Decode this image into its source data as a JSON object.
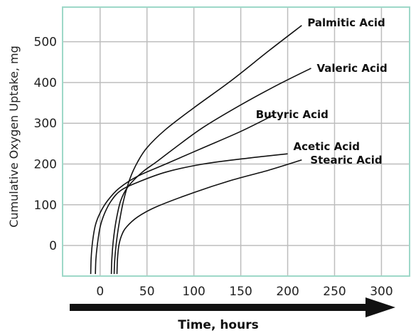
{
  "chart_data": {
    "type": "line",
    "title": "",
    "xlabel": "Time, hours",
    "ylabel": "Cumulative Oxygen Uptake, mg",
    "xlim": [
      -40,
      330
    ],
    "ylim": [
      -75,
      585
    ],
    "x_ticks": [
      0,
      50,
      100,
      150,
      200,
      250,
      300
    ],
    "y_ticks": [
      0,
      100,
      200,
      300,
      400,
      500
    ],
    "grid": true,
    "legend": "none",
    "axis_color": "#9ed8c8",
    "grid_color": "#bdbdbd",
    "line_color": "#111111",
    "arrow_color": "#111111",
    "series": [
      {
        "name": "Palmitic Acid",
        "x": [
          15,
          15.5,
          17,
          20,
          25,
          32,
          40,
          50,
          70,
          100,
          140,
          180,
          215
        ],
        "y": [
          -70,
          -40,
          0,
          50,
          110,
          165,
          205,
          240,
          285,
          338,
          405,
          478,
          540
        ]
      },
      {
        "name": "Valeric Acid",
        "x": [
          12,
          12.5,
          14,
          17,
          22,
          30,
          45,
          60,
          80,
          110,
          150,
          190,
          225
        ],
        "y": [
          -70,
          -35,
          10,
          60,
          110,
          145,
          180,
          205,
          240,
          290,
          345,
          395,
          435
        ]
      },
      {
        "name": "Butyric Acid",
        "x": [
          -10,
          -9.5,
          -8,
          -5,
          0,
          8,
          20,
          40,
          70,
          110,
          150,
          185
        ],
        "y": [
          -70,
          -30,
          10,
          50,
          80,
          110,
          140,
          170,
          200,
          240,
          280,
          320
        ]
      },
      {
        "name": "Acetic Acid",
        "x": [
          -5,
          -4.5,
          -3,
          0,
          5,
          12,
          22,
          40,
          70,
          110,
          160,
          200
        ],
        "y": [
          -70,
          -35,
          0,
          45,
          80,
          110,
          135,
          155,
          180,
          200,
          215,
          225
        ]
      },
      {
        "name": "Stearic Acid",
        "x": [
          18,
          18.5,
          20,
          23,
          28,
          40,
          60,
          100,
          140,
          180,
          215
        ],
        "y": [
          -70,
          -35,
          0,
          25,
          45,
          70,
          95,
          130,
          160,
          185,
          210
        ]
      }
    ]
  }
}
